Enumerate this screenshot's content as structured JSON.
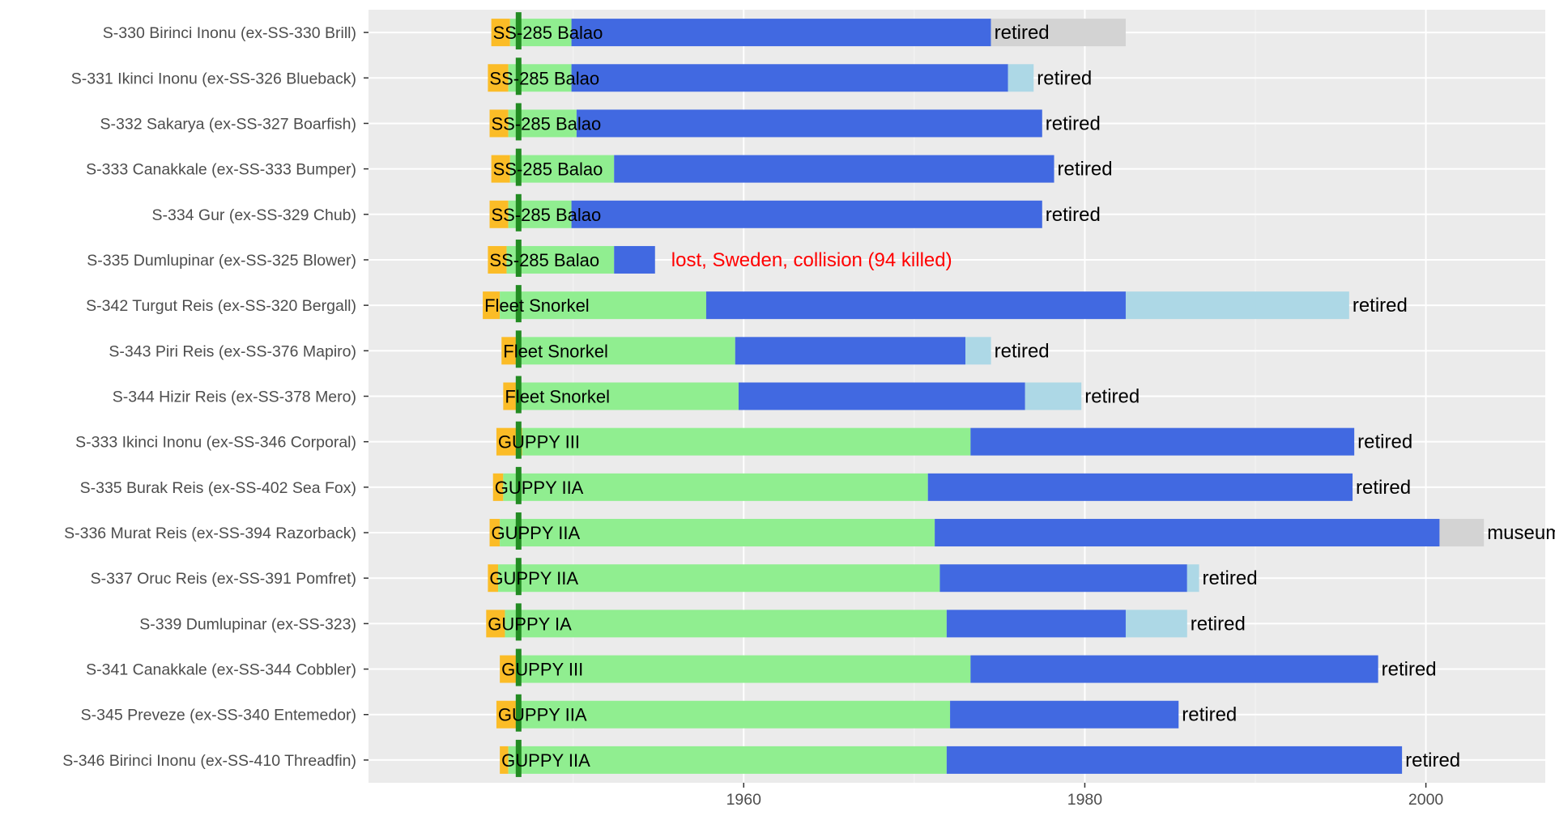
{
  "chart_data": {
    "type": "bar",
    "subtype": "horizontal-timeline",
    "title": "",
    "xlabel": "",
    "ylabel": "",
    "xlim": [
      1938,
      2007
    ],
    "x_ticks": [
      1960,
      1980,
      2000
    ],
    "grid": true,
    "legend": "none",
    "colors": {
      "panel": "#ebebeb",
      "grid_major": "#ffffff",
      "grid_minor": "#f5f5f5",
      "orange": "#fbbc27",
      "light_green": "#90ee90",
      "marker_green": "#228b22",
      "royal_blue": "#4169e1",
      "light_blue": "#add8e6",
      "light_gray": "#d3d3d3",
      "axis_text": "#4d4d4d",
      "annotation_red": "#ff0000"
    },
    "marker_year": 1946.8,
    "rows": [
      {
        "label": "S-330 Birinci Inonu (ex-SS-330 Brill)",
        "variant": "SS-285 Balao",
        "orange": [
          1945.2,
          1946.3
        ],
        "us": [
          1946.3,
          1949.9
        ],
        "turk": [
          1949.9,
          1974.5
        ],
        "after": [
          1974.5,
          1982.4
        ],
        "after_color": "light_gray",
        "end": "retired",
        "end_color": "#000000"
      },
      {
        "label": "S-331 Ikinci Inonu (ex-SS-326 Blueback)",
        "variant": "SS-285 Balao",
        "orange": [
          1945.0,
          1946.2
        ],
        "us": [
          1946.2,
          1949.9
        ],
        "turk": [
          1949.9,
          1975.5
        ],
        "after": [
          1975.5,
          1977.0
        ],
        "after_color": "light_blue",
        "end": "retired",
        "end_color": "#000000"
      },
      {
        "label": "S-332 Sakarya (ex-SS-327 Boarfish)",
        "variant": "SS-285 Balao",
        "orange": [
          1945.1,
          1946.2
        ],
        "us": [
          1946.2,
          1950.2
        ],
        "turk": [
          1950.2,
          1977.5
        ],
        "after": null,
        "after_color": null,
        "end": "retired",
        "end_color": "#000000"
      },
      {
        "label": "S-333 Canakkale (ex-SS-333 Bumper)",
        "variant": "SS-285 Balao",
        "orange": [
          1945.2,
          1946.3
        ],
        "us": [
          1946.3,
          1952.4
        ],
        "turk": [
          1952.4,
          1978.2
        ],
        "after": null,
        "after_color": null,
        "end": "retired",
        "end_color": "#000000"
      },
      {
        "label": "S-334 Gur (ex-SS-329 Chub)",
        "variant": "SS-285 Balao",
        "orange": [
          1945.1,
          1946.2
        ],
        "us": [
          1946.2,
          1949.9
        ],
        "turk": [
          1949.9,
          1977.5
        ],
        "after": null,
        "after_color": null,
        "end": "retired",
        "end_color": "#000000"
      },
      {
        "label": "S-335 Dumlupinar (ex-SS-325 Blower)",
        "variant": "SS-285 Balao",
        "orange": [
          1945.0,
          1946.1
        ],
        "us": [
          1946.1,
          1952.4
        ],
        "turk": [
          1952.4,
          1954.8
        ],
        "after": null,
        "after_color": null,
        "end": "lost, Sweden, collision (94 killed)",
        "end_color": "#ff0000"
      },
      {
        "label": "S-342 Turgut Reis (ex-SS-320 Bergall)",
        "variant": "Fleet Snorkel",
        "orange": [
          1944.7,
          1945.7
        ],
        "us": [
          1945.7,
          1957.8
        ],
        "turk": [
          1957.8,
          1982.4
        ],
        "after": [
          1982.4,
          1995.5
        ],
        "after_color": "light_blue",
        "end": "retired",
        "end_color": "#000000"
      },
      {
        "label": "S-343 Piri Reis (ex-SS-376 Mapiro)",
        "variant": "Fleet Snorkel",
        "orange": [
          1945.8,
          1946.8
        ],
        "us": [
          1946.8,
          1959.5
        ],
        "turk": [
          1959.5,
          1973.0
        ],
        "after": [
          1973.0,
          1974.5
        ],
        "after_color": "light_blue",
        "end": "retired",
        "end_color": "#000000"
      },
      {
        "label": "S-344 Hizir Reis (ex-SS-378 Mero)",
        "variant": "Fleet Snorkel",
        "orange": [
          1945.9,
          1946.9
        ],
        "us": [
          1946.9,
          1959.7
        ],
        "turk": [
          1959.7,
          1976.5
        ],
        "after": [
          1976.5,
          1979.8
        ],
        "after_color": "light_blue",
        "end": "retired",
        "end_color": "#000000"
      },
      {
        "label": "S-333 Ikinci Inonu (ex-SS-346 Corporal)",
        "variant": "GUPPY III",
        "orange": [
          1945.5,
          1947.0
        ],
        "us": [
          1947.0,
          1973.3
        ],
        "turk": [
          1973.3,
          1995.8
        ],
        "after": null,
        "after_color": null,
        "end": "retired",
        "end_color": "#000000"
      },
      {
        "label": "S-335 Burak Reis (ex-SS-402 Sea Fox)",
        "variant": "GUPPY IIA",
        "orange": [
          1945.3,
          1945.9
        ],
        "us": [
          1945.9,
          1970.8
        ],
        "turk": [
          1970.8,
          1995.7
        ],
        "after": null,
        "after_color": null,
        "end": "retired",
        "end_color": "#000000"
      },
      {
        "label": "S-336 Murat Reis (ex-SS-394 Razorback)",
        "variant": "GUPPY IIA",
        "orange": [
          1945.1,
          1945.7
        ],
        "us": [
          1945.7,
          1971.2
        ],
        "turk": [
          1971.2,
          2000.8
        ],
        "after": [
          2000.8,
          2003.4
        ],
        "after_color": "light_gray",
        "end": "museum",
        "end_color": "#000000"
      },
      {
        "label": "S-337 Oruc Reis (ex-SS-391 Pomfret)",
        "variant": "GUPPY IIA",
        "orange": [
          1945.0,
          1945.6
        ],
        "us": [
          1945.6,
          1971.5
        ],
        "turk": [
          1971.5,
          1986.0
        ],
        "after": [
          1986.0,
          1986.7
        ],
        "after_color": "light_blue",
        "end": "retired",
        "end_color": "#000000"
      },
      {
        "label": "S-339 Dumlupinar (ex-SS-323)",
        "variant": "GUPPY IA",
        "orange": [
          1944.9,
          1946.0
        ],
        "us": [
          1946.0,
          1971.9
        ],
        "turk": [
          1971.9,
          1982.4
        ],
        "after": [
          1982.4,
          1986.0
        ],
        "after_color": "light_blue",
        "end": "retired",
        "end_color": "#000000"
      },
      {
        "label": "S-341 Canakkale (ex-SS-344 Cobbler)",
        "variant": "GUPPY III",
        "orange": [
          1945.7,
          1946.8
        ],
        "us": [
          1946.8,
          1973.3
        ],
        "turk": [
          1973.3,
          1997.2
        ],
        "after": null,
        "after_color": null,
        "end": "retired",
        "end_color": "#000000"
      },
      {
        "label": "S-345 Preveze (ex-SS-340 Entemedor)",
        "variant": "GUPPY IIA",
        "orange": [
          1945.5,
          1946.7
        ],
        "us": [
          1946.7,
          1972.1
        ],
        "turk": [
          1972.1,
          1985.5
        ],
        "after": null,
        "after_color": null,
        "end": "retired",
        "end_color": "#000000"
      },
      {
        "label": "S-346 Birinci Inonu (ex-SS-410 Threadfin)",
        "variant": "GUPPY IIA",
        "orange": [
          1945.7,
          1946.2
        ],
        "us": [
          1946.2,
          1971.9
        ],
        "turk": [
          1971.9,
          1998.6
        ],
        "after": null,
        "after_color": null,
        "end": "retired",
        "end_color": "#000000"
      }
    ]
  }
}
